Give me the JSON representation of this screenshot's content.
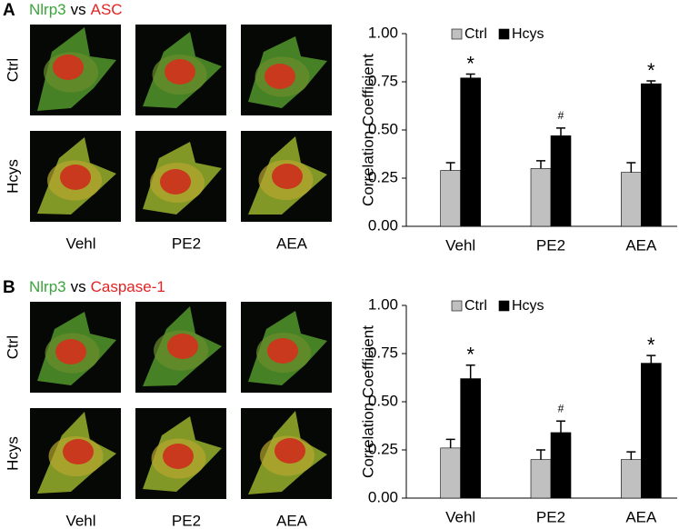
{
  "panels": [
    {
      "label": "A",
      "title": [
        "Nlrp3",
        "vs",
        "ASC"
      ],
      "rows": [
        "Ctrl",
        "Hcys"
      ],
      "columns": [
        "Vehl",
        "PE2",
        "AEA"
      ]
    },
    {
      "label": "B",
      "title": [
        "Nlrp3",
        "vs",
        "Caspase-1"
      ],
      "rows": [
        "Ctrl",
        "Hcys"
      ],
      "columns": [
        "Vehl",
        "PE2",
        "AEA"
      ]
    }
  ],
  "chart_data": [
    {
      "type": "bar",
      "ylabel": "Correlation Coefficient",
      "categories": [
        "Vehl",
        "PE2",
        "AEA"
      ],
      "series": [
        {
          "name": "Ctrl",
          "color": "#c0c0c0",
          "values": [
            0.29,
            0.3,
            0.28
          ],
          "errors": [
            0.04,
            0.04,
            0.05
          ]
        },
        {
          "name": "Hcys",
          "color": "#000000",
          "values": [
            0.77,
            0.47,
            0.74
          ],
          "errors": [
            0.02,
            0.04,
            0.015
          ]
        }
      ],
      "annotations": [
        "*",
        "#",
        "*"
      ],
      "ylim": [
        0,
        1
      ],
      "yticks": [
        {
          "value": 0,
          "label": "0.00"
        },
        {
          "value": 0.25,
          "label": "0.25"
        },
        {
          "value": 0.5,
          "label": "0.50"
        },
        {
          "value": 0.75,
          "label": "0.75"
        },
        {
          "value": 1,
          "label": "1.00"
        }
      ],
      "legend": "upper left"
    },
    {
      "type": "bar",
      "ylabel": "Correlation Coefficient",
      "categories": [
        "Vehl",
        "PE2",
        "AEA"
      ],
      "series": [
        {
          "name": "Ctrl",
          "color": "#c0c0c0",
          "values": [
            0.26,
            0.2,
            0.2
          ],
          "errors": [
            0.045,
            0.05,
            0.04
          ]
        },
        {
          "name": "Hcys",
          "color": "#000000",
          "values": [
            0.62,
            0.34,
            0.7
          ],
          "errors": [
            0.07,
            0.06,
            0.04
          ]
        }
      ],
      "annotations": [
        "*",
        "#",
        "*"
      ],
      "ylim": [
        0,
        1
      ],
      "yticks": [
        {
          "value": 0,
          "label": "0.00"
        },
        {
          "value": 0.25,
          "label": "0.25"
        },
        {
          "value": 0.5,
          "label": "0.50"
        },
        {
          "value": 0.75,
          "label": "0.75"
        },
        {
          "value": 1,
          "label": "1.00"
        }
      ],
      "legend": "upper left"
    }
  ]
}
